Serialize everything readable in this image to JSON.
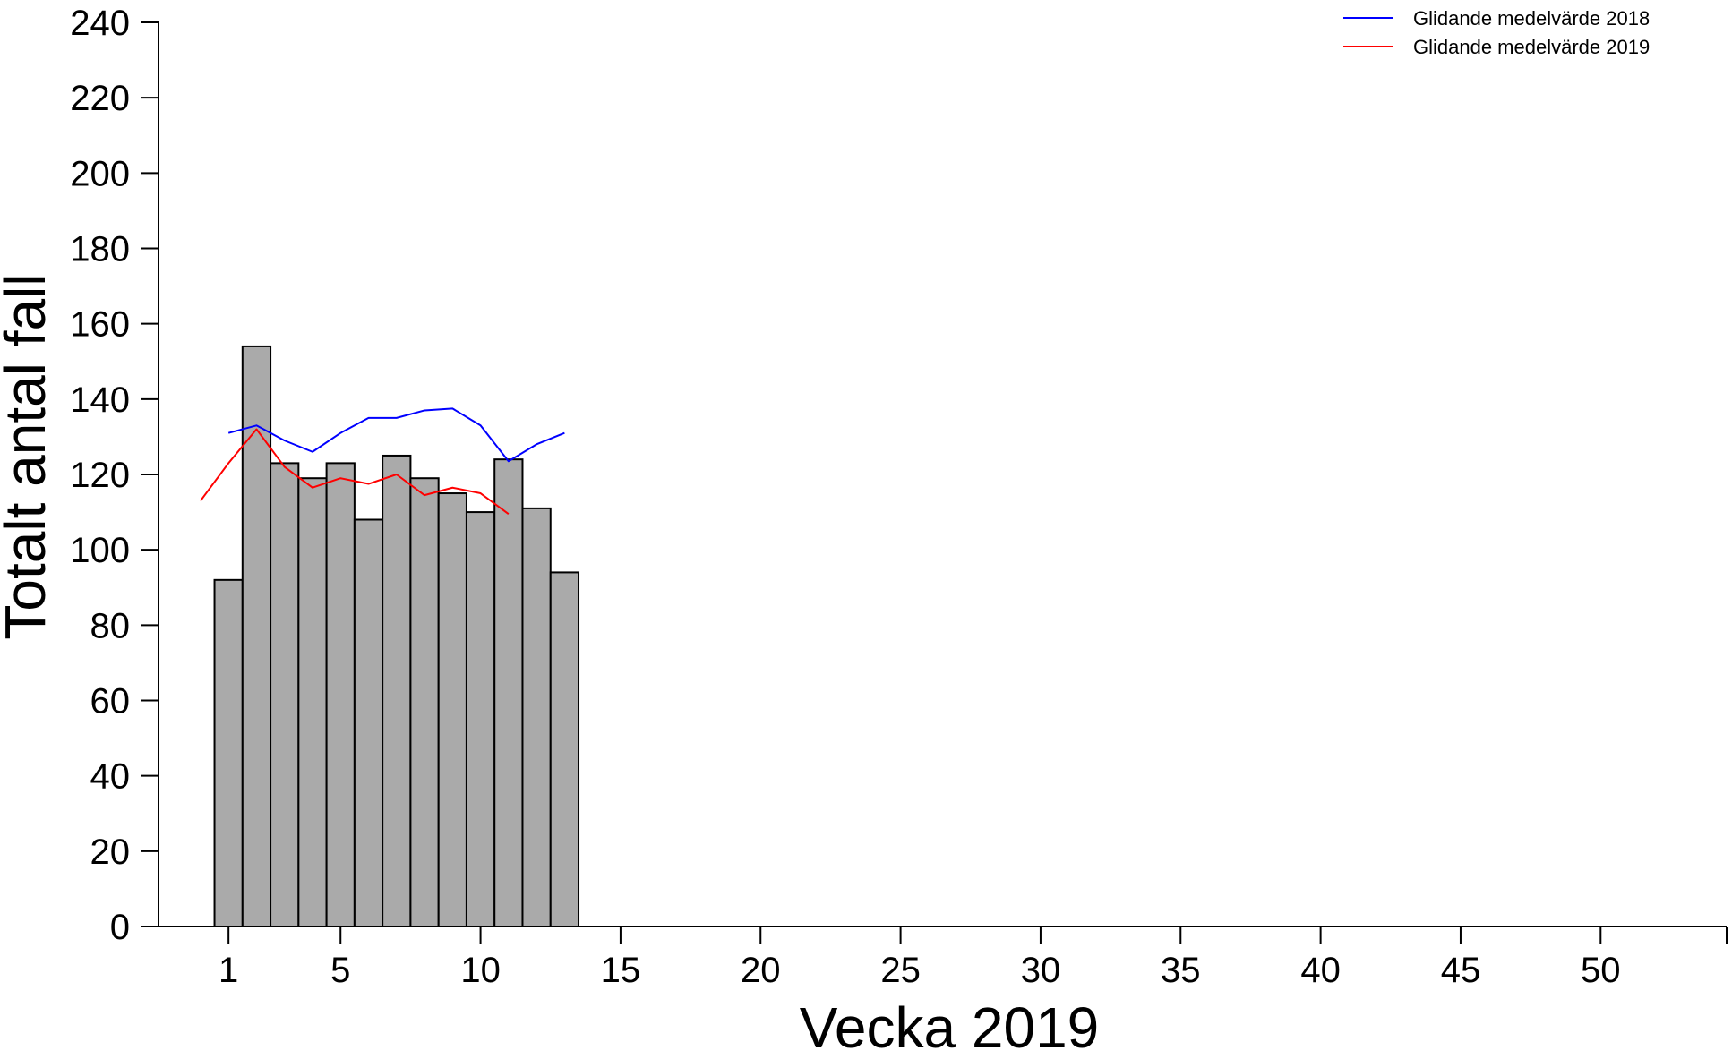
{
  "chart_data": {
    "type": "bar",
    "xlabel": "Vecka 2019",
    "ylabel": "Totalt antal fall",
    "xlim": [
      -1.5,
      54.5
    ],
    "ylim": [
      0,
      240
    ],
    "x_ticks": [
      1,
      5,
      10,
      15,
      20,
      25,
      30,
      35,
      40,
      45,
      50
    ],
    "y_ticks": [
      0,
      20,
      40,
      60,
      80,
      100,
      120,
      140,
      160,
      180,
      200,
      220,
      240
    ],
    "grid": false,
    "legend_position": "top-right",
    "bars": {
      "categories": [
        1,
        2,
        3,
        4,
        5,
        6,
        7,
        8,
        9,
        10,
        11,
        12,
        13
      ],
      "values": [
        92,
        154,
        123,
        119,
        123,
        108,
        125,
        119,
        115,
        110,
        124,
        111,
        94
      ],
      "color": "#aaaaaa"
    },
    "series": [
      {
        "name": "Glidande medelvärde 2018",
        "color": "#0000ff",
        "x": [
          1,
          2,
          3,
          4,
          5,
          6,
          7,
          8,
          9,
          10,
          11,
          12,
          13
        ],
        "values": [
          131,
          133,
          129,
          126,
          131,
          135,
          135,
          137,
          137.5,
          133,
          123.5,
          128,
          131
        ]
      },
      {
        "name": "Glidande medelvärde 2019",
        "color": "#ff0000",
        "x": [
          0,
          1,
          2,
          3,
          4,
          5,
          6,
          7,
          8,
          9,
          10,
          11
        ],
        "values": [
          113,
          123,
          132,
          122,
          116.5,
          119,
          117.5,
          120,
          114.5,
          116.5,
          115,
          109.5
        ]
      }
    ]
  }
}
